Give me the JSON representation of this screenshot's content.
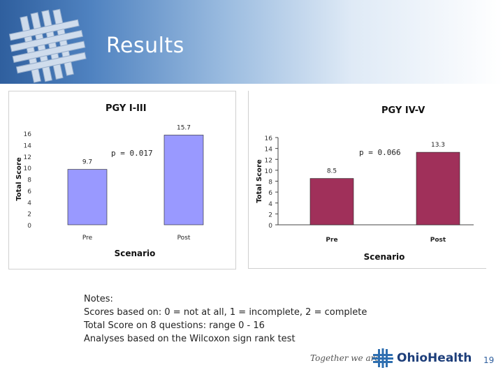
{
  "slide": {
    "title": "Results",
    "page_number": "19",
    "footer_tagline": "Together we are",
    "footer_brand": "OhioHealth"
  },
  "notes": {
    "heading": "Notes:",
    "lines": [
      "Scores based on: 0 = not at all, 1 = incomplete, 2 = complete",
      "Total Score on 8 questions: range 0 - 16",
      "Analyses based on the Wilcoxon sign rank test"
    ]
  },
  "colors": {
    "left_bar": "#9999ff",
    "right_bar": "#a0305a"
  },
  "chart_data": [
    {
      "type": "bar",
      "title": "PGY I-III",
      "categories": [
        "Pre",
        "Post"
      ],
      "values": [
        9.7,
        15.7
      ],
      "value_labels": [
        "9.7",
        "15.7"
      ],
      "xlabel": "Scenario",
      "ylabel": "Total Score",
      "ylim": [
        0,
        16
      ],
      "yticks": [
        0,
        2,
        4,
        6,
        8,
        10,
        12,
        14,
        16
      ],
      "annotation": "p = 0.017",
      "grid": false
    },
    {
      "type": "bar",
      "title": "PGY IV-V",
      "categories": [
        "Pre",
        "Post"
      ],
      "values": [
        8.5,
        13.3
      ],
      "value_labels": [
        "8.5",
        "13.3"
      ],
      "xlabel": "Scenario",
      "ylabel": "Total Score",
      "ylim": [
        0,
        16
      ],
      "yticks": [
        0,
        2,
        4,
        6,
        8,
        10,
        12,
        14,
        16
      ],
      "annotation": "p = 0.066",
      "grid": false
    }
  ]
}
